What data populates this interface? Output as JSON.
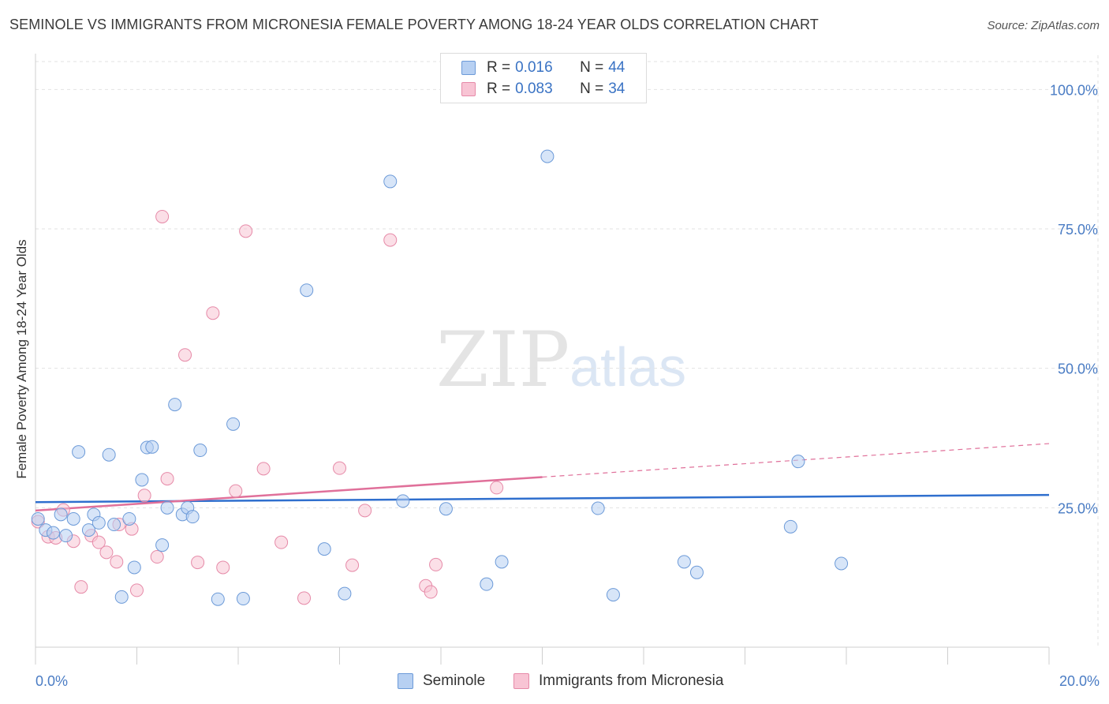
{
  "title": "SEMINOLE VS IMMIGRANTS FROM MICRONESIA FEMALE POVERTY AMONG 18-24 YEAR OLDS CORRELATION CHART",
  "source": "Source: ZipAtlas.com",
  "watermark": {
    "zip": "ZIP",
    "atlas": "atlas"
  },
  "legend_top": {
    "row1": {
      "r_label": "R = ",
      "r_value": "0.016",
      "n_label": "N = ",
      "n_value": "44"
    },
    "row2": {
      "r_label": "R = ",
      "r_value": "0.083",
      "n_label": "N = ",
      "n_value": "34"
    }
  },
  "legend_bottom": {
    "series1": "Seminole",
    "series2": "Immigrants from Micronesia"
  },
  "colors": {
    "seminole_fill": "#b7d0f2",
    "seminole_stroke": "#6c9ad8",
    "seminole_line": "#2f6fce",
    "micronesia_fill": "#f8c4d4",
    "micronesia_stroke": "#e68aa8",
    "micronesia_line": "#e0709a",
    "tick_text": "#4a7cc4",
    "grid": "#e2e2e2"
  },
  "chart_data": {
    "type": "scatter",
    "title": "SEMINOLE VS IMMIGRANTS FROM MICRONESIA FEMALE POVERTY AMONG 18-24 YEAR OLDS CORRELATION CHART",
    "xlabel": "",
    "ylabel": "Female Poverty Among 18-24 Year Olds",
    "xlim": [
      0,
      20
    ],
    "ylim": [
      0,
      105
    ],
    "x_tick_labels": [
      "0.0%",
      "20.0%"
    ],
    "y_ticks": [
      25,
      50,
      75,
      100
    ],
    "y_tick_labels": [
      "25.0%",
      "50.0%",
      "75.0%",
      "100.0%"
    ],
    "grid": "horizontal dashed",
    "legend_position": "top-center and bottom",
    "series": [
      {
        "name": "Seminole",
        "r": 0.016,
        "n": 44,
        "trend": {
          "x": [
            0,
            20
          ],
          "y": [
            26.0,
            27.3
          ]
        },
        "points": [
          [
            0.05,
            23.0
          ],
          [
            0.2,
            21.0
          ],
          [
            0.35,
            20.5
          ],
          [
            0.5,
            23.8
          ],
          [
            0.6,
            20.0
          ],
          [
            0.75,
            23.0
          ],
          [
            0.85,
            35.0
          ],
          [
            1.05,
            21.0
          ],
          [
            1.15,
            23.8
          ],
          [
            1.25,
            22.3
          ],
          [
            1.45,
            34.5
          ],
          [
            1.55,
            22.0
          ],
          [
            1.7,
            9.0
          ],
          [
            1.85,
            23.0
          ],
          [
            1.95,
            14.3
          ],
          [
            2.1,
            30.0
          ],
          [
            2.2,
            35.8
          ],
          [
            2.3,
            35.9
          ],
          [
            2.5,
            18.3
          ],
          [
            2.6,
            25.0
          ],
          [
            2.75,
            43.5
          ],
          [
            2.9,
            23.8
          ],
          [
            3.0,
            25.0
          ],
          [
            3.1,
            23.4
          ],
          [
            3.25,
            35.3
          ],
          [
            3.6,
            8.6
          ],
          [
            3.9,
            40.0
          ],
          [
            4.1,
            8.7
          ],
          [
            5.35,
            64.0
          ],
          [
            5.7,
            17.6
          ],
          [
            6.1,
            9.6
          ],
          [
            7.0,
            83.5
          ],
          [
            7.25,
            26.2
          ],
          [
            8.1,
            24.8
          ],
          [
            8.9,
            11.3
          ],
          [
            9.2,
            15.3
          ],
          [
            10.1,
            88.0
          ],
          [
            11.1,
            24.9
          ],
          [
            11.4,
            9.4
          ],
          [
            12.8,
            15.3
          ],
          [
            13.05,
            13.4
          ],
          [
            14.9,
            21.6
          ],
          [
            15.05,
            33.3
          ],
          [
            15.9,
            15.0
          ]
        ]
      },
      {
        "name": "Immigrants from Micronesia",
        "r": 0.083,
        "n": 34,
        "trend": {
          "x": [
            0,
            20
          ],
          "y": [
            24.5,
            36.5
          ],
          "solid_until_x": 10
        },
        "points": [
          [
            0.05,
            22.5
          ],
          [
            0.25,
            19.8
          ],
          [
            0.4,
            19.6
          ],
          [
            0.55,
            24.6
          ],
          [
            0.75,
            19.0
          ],
          [
            0.9,
            10.8
          ],
          [
            1.1,
            20.0
          ],
          [
            1.25,
            18.8
          ],
          [
            1.4,
            17.0
          ],
          [
            1.6,
            15.3
          ],
          [
            1.65,
            22.0
          ],
          [
            1.9,
            21.2
          ],
          [
            2.0,
            10.2
          ],
          [
            2.15,
            27.2
          ],
          [
            2.4,
            16.2
          ],
          [
            2.5,
            77.2
          ],
          [
            2.6,
            30.2
          ],
          [
            2.95,
            52.4
          ],
          [
            3.2,
            15.2
          ],
          [
            3.5,
            59.9
          ],
          [
            3.7,
            14.3
          ],
          [
            3.95,
            28.0
          ],
          [
            4.15,
            74.6
          ],
          [
            4.5,
            32.0
          ],
          [
            4.85,
            18.8
          ],
          [
            5.3,
            8.8
          ],
          [
            6.0,
            32.1
          ],
          [
            6.25,
            14.7
          ],
          [
            6.5,
            24.5
          ],
          [
            7.0,
            73.0
          ],
          [
            7.7,
            11.0
          ],
          [
            7.8,
            9.9
          ],
          [
            7.9,
            14.8
          ],
          [
            9.1,
            28.6
          ]
        ]
      }
    ]
  }
}
